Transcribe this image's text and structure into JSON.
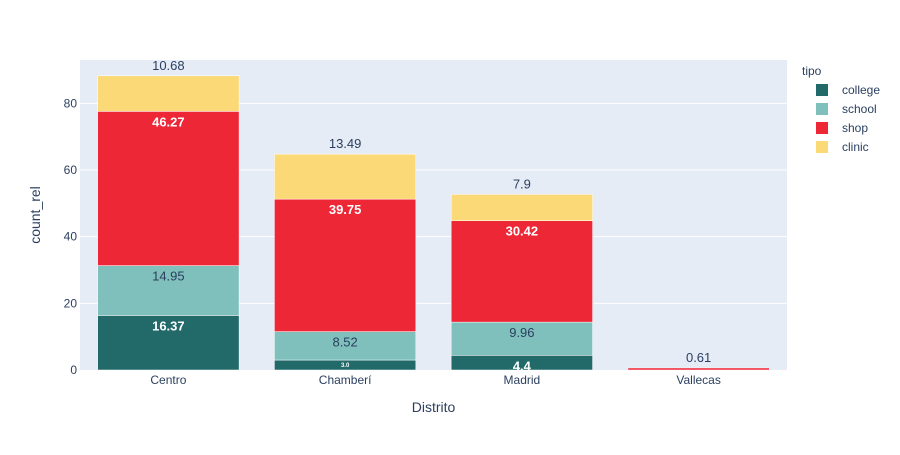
{
  "chart_data": {
    "type": "bar",
    "stacked": true,
    "xlabel": "Distrito",
    "ylabel": "count_rel",
    "ylim": [
      0,
      93
    ],
    "yticks": [
      0,
      20,
      40,
      60,
      80
    ],
    "categories": [
      "Centro",
      "Chamberí",
      "Madrid",
      "Vallecas"
    ],
    "legend": {
      "title": "tipo",
      "position": "right"
    },
    "series": [
      {
        "name": "college",
        "color": "#22696a",
        "values": [
          16.37,
          2.99,
          4.4,
          null
        ],
        "labels": [
          "16.37",
          "3.0",
          "4.4",
          ""
        ]
      },
      {
        "name": "school",
        "color": "#7fc0bc",
        "values": [
          14.95,
          8.52,
          9.96,
          null
        ],
        "labels": [
          "14.95",
          "8.52",
          "9.96",
          ""
        ]
      },
      {
        "name": "shop",
        "color": "#ee2737",
        "values": [
          46.27,
          39.75,
          30.42,
          0.61
        ],
        "labels": [
          "46.27",
          "39.75",
          "30.42",
          "0.61"
        ]
      },
      {
        "name": "clinic",
        "color": "#fbd976",
        "values": [
          10.68,
          13.49,
          7.9,
          null
        ],
        "labels": [
          "10.68",
          "13.49",
          "7.9",
          ""
        ]
      }
    ]
  }
}
